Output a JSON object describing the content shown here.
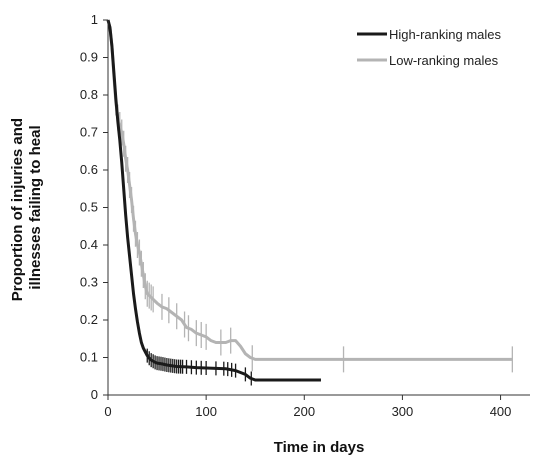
{
  "chart_data": {
    "type": "line",
    "title": "",
    "xlabel": "Time in days",
    "ylabel": "Proportion of injuries and illnesses failing to heal",
    "ylabel_lines": [
      "Proportion of injuries and",
      "illnesses failing to heal"
    ],
    "xlim": [
      0,
      430
    ],
    "ylim": [
      0,
      1
    ],
    "x_ticks": [
      0,
      100,
      200,
      300,
      400
    ],
    "x_tick_labels": [
      "0",
      "100",
      "200",
      "300",
      "400"
    ],
    "y_ticks": [
      0,
      0.1,
      0.2,
      0.3,
      0.4,
      0.5,
      0.6,
      0.7,
      0.8,
      0.9,
      1
    ],
    "y_tick_labels": [
      "0",
      "0.1",
      "0.2",
      "0.3",
      "0.4",
      "0.5",
      "0.6",
      "0.7",
      "0.8",
      "0.9",
      "1"
    ],
    "grid": false,
    "legend_position": "top-right",
    "series": [
      {
        "name": "High-ranking males",
        "color": "#1a1a1a",
        "x": [
          0,
          2,
          4,
          6,
          8,
          10,
          12,
          14,
          16,
          18,
          20,
          22,
          24,
          26,
          28,
          30,
          32,
          34,
          36,
          38,
          40,
          42,
          44,
          46,
          48,
          50,
          55,
          60,
          65,
          70,
          80,
          90,
          100,
          110,
          120,
          130,
          140,
          145,
          150,
          175,
          200,
          217
        ],
        "y": [
          1.0,
          0.98,
          0.93,
          0.86,
          0.79,
          0.73,
          0.68,
          0.62,
          0.55,
          0.48,
          0.42,
          0.37,
          0.32,
          0.27,
          0.23,
          0.195,
          0.165,
          0.14,
          0.125,
          0.115,
          0.105,
          0.098,
          0.093,
          0.09,
          0.087,
          0.085,
          0.083,
          0.08,
          0.078,
          0.076,
          0.075,
          0.073,
          0.072,
          0.071,
          0.07,
          0.065,
          0.055,
          0.045,
          0.04,
          0.04,
          0.04,
          0.04
        ],
        "censor_x": [
          40,
          42,
          44,
          46,
          48,
          50,
          52,
          54,
          56,
          58,
          60,
          62,
          64,
          66,
          68,
          70,
          72,
          74,
          76,
          80,
          85,
          90,
          95,
          100,
          110,
          118,
          122,
          126,
          130,
          140,
          146
        ]
      },
      {
        "name": "Low-ranking males",
        "color": "#b4b4b4",
        "x": [
          0,
          2,
          4,
          6,
          8,
          10,
          12,
          14,
          16,
          18,
          20,
          22,
          24,
          26,
          28,
          30,
          32,
          34,
          36,
          38,
          40,
          42,
          44,
          46,
          48,
          50,
          55,
          60,
          65,
          70,
          75,
          80,
          85,
          90,
          95,
          100,
          105,
          110,
          115,
          120,
          125,
          130,
          135,
          140,
          145,
          150,
          170,
          200,
          240,
          300,
          350,
          412
        ],
        "y": [
          1.0,
          0.98,
          0.93,
          0.85,
          0.78,
          0.74,
          0.72,
          0.7,
          0.67,
          0.63,
          0.6,
          0.56,
          0.52,
          0.47,
          0.43,
          0.4,
          0.38,
          0.35,
          0.32,
          0.29,
          0.27,
          0.265,
          0.26,
          0.255,
          0.25,
          0.245,
          0.235,
          0.23,
          0.22,
          0.21,
          0.2,
          0.18,
          0.175,
          0.165,
          0.16,
          0.155,
          0.145,
          0.14,
          0.14,
          0.14,
          0.145,
          0.145,
          0.13,
          0.11,
          0.1,
          0.095,
          0.095,
          0.095,
          0.095,
          0.095,
          0.095,
          0.095
        ],
        "censor_x": [
          8,
          10,
          12,
          14,
          16,
          18,
          20,
          22,
          24,
          26,
          28,
          30,
          32,
          34,
          36,
          38,
          40,
          42,
          44,
          46,
          55,
          62,
          70,
          78,
          82,
          90,
          95,
          100,
          115,
          125,
          147,
          240,
          412
        ]
      }
    ]
  }
}
